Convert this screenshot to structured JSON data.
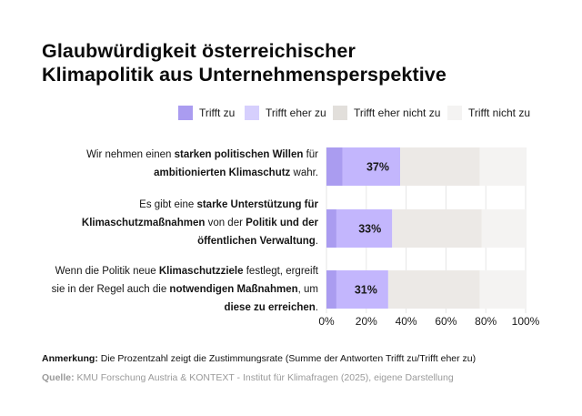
{
  "chart_data": {
    "type": "bar",
    "orientation": "horizontal",
    "stacked": true,
    "title": "Glaubwürdigkeit österreichischer Klimapolitik aus Unternehmensperspektive",
    "title_lines": [
      "Glaubwürdigkeit österreichischer",
      "Klimapolitik aus Unternehmensperspektive"
    ],
    "xlabel": "",
    "ylabel": "",
    "xlim": [
      0,
      100
    ],
    "x_ticks": [
      "0%",
      "20%",
      "40%",
      "60%",
      "80%",
      "100%"
    ],
    "x_tick_values": [
      0,
      20,
      40,
      60,
      80,
      100
    ],
    "grid": true,
    "legend_position": "top-right",
    "categories": [
      {
        "segments": [
          {
            "text": "Wir nehmen einen ",
            "bold": false
          },
          {
            "text": "starken politischen Willen",
            "bold": true
          },
          {
            "text": " für",
            "bold": false
          },
          {
            "br": true
          },
          {
            "text": "ambitionierten Klimaschutz",
            "bold": true
          },
          {
            "text": " wahr.",
            "bold": false
          }
        ],
        "data_label": "37%"
      },
      {
        "segments": [
          {
            "text": "Es gibt eine ",
            "bold": false
          },
          {
            "text": "starke Unterstützung für",
            "bold": true
          },
          {
            "br": true
          },
          {
            "text": "Klimaschutzmaßnahmen",
            "bold": true
          },
          {
            "text": " von der ",
            "bold": false
          },
          {
            "text": "Politik und der",
            "bold": true
          },
          {
            "br": true
          },
          {
            "text": "öffentlichen Verwaltung",
            "bold": true
          },
          {
            "text": ".",
            "bold": false
          }
        ],
        "data_label": "33%"
      },
      {
        "segments": [
          {
            "text": "Wenn die Politik neue ",
            "bold": false
          },
          {
            "text": "Klimaschutzziele",
            "bold": true
          },
          {
            "text": " festlegt, ergreift",
            "bold": false
          },
          {
            "br": true
          },
          {
            "text": "sie in der Regel auch die ",
            "bold": false
          },
          {
            "text": "notwendigen Maßnahmen",
            "bold": true
          },
          {
            "text": ", um",
            "bold": false
          },
          {
            "br": true
          },
          {
            "text": "diese zu erreichen",
            "bold": true
          },
          {
            "text": ".",
            "bold": false
          }
        ],
        "data_label": "31%"
      }
    ],
    "series": [
      {
        "name": "Trifft zu",
        "color": "#aa9cf0",
        "values": [
          8,
          5,
          5
        ]
      },
      {
        "name": "Trifft eher zu",
        "color": "#c3b6fd",
        "values": [
          29,
          28,
          26
        ]
      },
      {
        "name": "Trifft eher nicht zu",
        "color": "#ece9e6",
        "values": [
          40,
          45,
          46
        ]
      },
      {
        "name": "Trifft nicht zu",
        "color": "#f4f3f2",
        "values": [
          23,
          22,
          23
        ]
      }
    ],
    "legend_colors": [
      "#aa9cf0",
      "#d6cffd",
      "#e2dfdb",
      "#f4f3f2"
    ]
  },
  "footer": {
    "note_label": "Anmerkung:",
    "note_text": " Die Prozentzahl zeigt die Zustimmungsrate (Summe der Antworten Trifft zu/Trifft eher zu)",
    "source_label": "Quelle:",
    "source_text": " KMU Forschung Austria & KONTEXT - Institut für Klimafragen (2025), eigene Darstellung"
  }
}
